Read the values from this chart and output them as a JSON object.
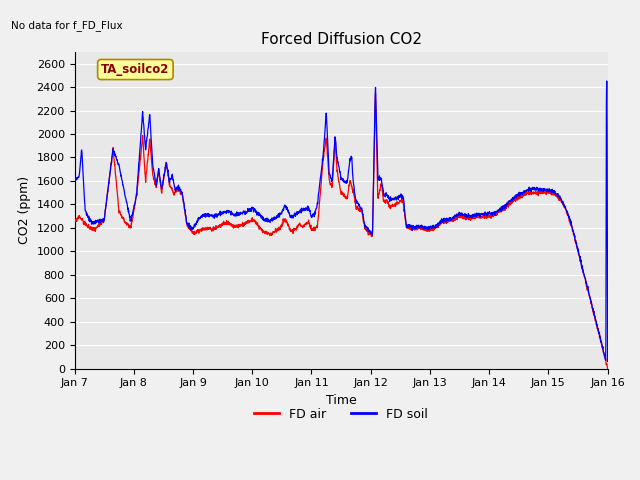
{
  "title": "Forced Diffusion CO2",
  "xlabel": "Time",
  "ylabel": "CO2 (ppm)",
  "ylim": [
    0,
    2700
  ],
  "yticks": [
    0,
    200,
    400,
    600,
    800,
    1000,
    1200,
    1400,
    1600,
    1800,
    2000,
    2200,
    2400,
    2600
  ],
  "xtick_labels": [
    "Jan 7",
    "Jan 8",
    "Jan 9",
    "Jan 10",
    "Jan 11",
    "Jan 12",
    "Jan 13",
    "Jan 14",
    "Jan 15",
    "Jan 16"
  ],
  "top_left_text": "No data for f_FD_Flux",
  "annotation_text": "TA_soilco2",
  "legend_entries": [
    "FD air",
    "FD soil"
  ],
  "legend_colors": [
    "red",
    "blue"
  ],
  "fig_bg_color": "#f0f0f0",
  "plot_bg_color": "#e8e8e8",
  "grid_color": "#ffffff",
  "title_fontsize": 11,
  "axis_label_fontsize": 9,
  "tick_fontsize": 8,
  "line_width": 0.9
}
